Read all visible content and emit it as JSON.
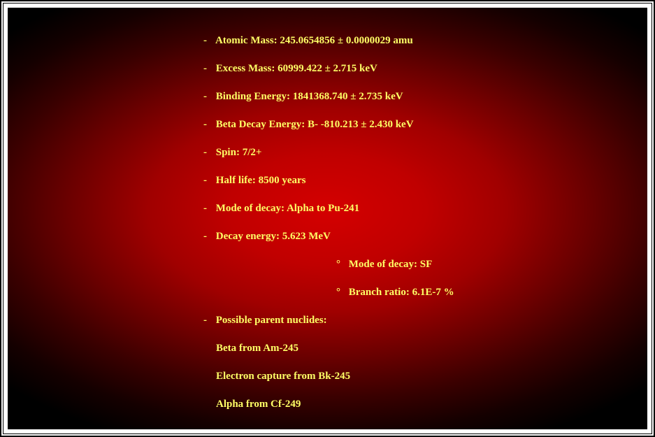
{
  "colors": {
    "text": "#ffff66",
    "panel_gradient_center": "#d40000",
    "panel_gradient_edge": "#000000",
    "frame_border": "#000000",
    "page_bg": "#ffffff"
  },
  "typography": {
    "font_family": "Times New Roman",
    "font_weight": "bold",
    "font_size_pt": 11
  },
  "items": [
    {
      "label": "Atomic Mass: 245.0654856 ± 0.0000029 amu"
    },
    {
      "label": "Excess Mass: 60999.422 ± 2.715 keV"
    },
    {
      "label": "Binding Energy: 1841368.740 ± 2.735 keV"
    },
    {
      "label": "Beta Decay Energy: B- -810.213 ± 2.430 keV"
    },
    {
      "label": "Spin: 7/2+"
    },
    {
      "label": "Half life: 8500 years"
    },
    {
      "label": "Mode of decay: Alpha to Pu-241"
    },
    {
      "label": "Decay energy: 5.623 MeV"
    }
  ],
  "sub_items": [
    {
      "label": "Mode of decay: SF"
    },
    {
      "label": "Branch ratio: 6.1E-7 %"
    }
  ],
  "parents_header": "Possible parent nuclides:",
  "parents": [
    "Beta from Am-245",
    "Electron capture from Bk-245",
    "Alpha from Cf-249"
  ]
}
